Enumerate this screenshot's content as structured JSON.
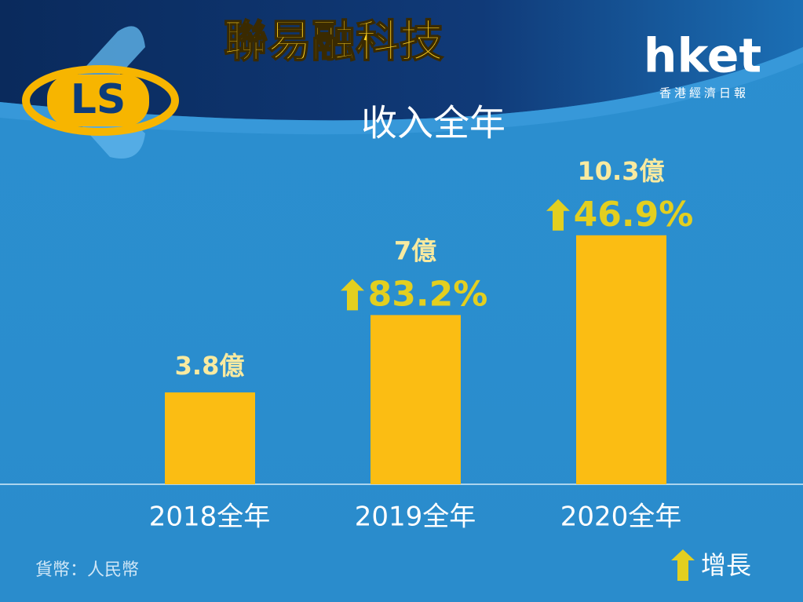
{
  "chart_data": {
    "type": "bar",
    "title": "聯易融科技",
    "subtitle": "收入全年",
    "brand": "hket",
    "brand_subtitle": "香港經濟日報",
    "categories": [
      "2018全年",
      "2019全年",
      "2020全年"
    ],
    "values": [
      3.8,
      7,
      10.3
    ],
    "value_labels": [
      "3.8億",
      "7億",
      "10.3億"
    ],
    "growth_labels": [
      null,
      "83.2%",
      "46.9%"
    ],
    "legend": "增長",
    "note": "貨幣：人民幣",
    "color": "#fbbd13",
    "growth_color": "#e3cf1f",
    "ylim": [
      0,
      20
    ]
  }
}
